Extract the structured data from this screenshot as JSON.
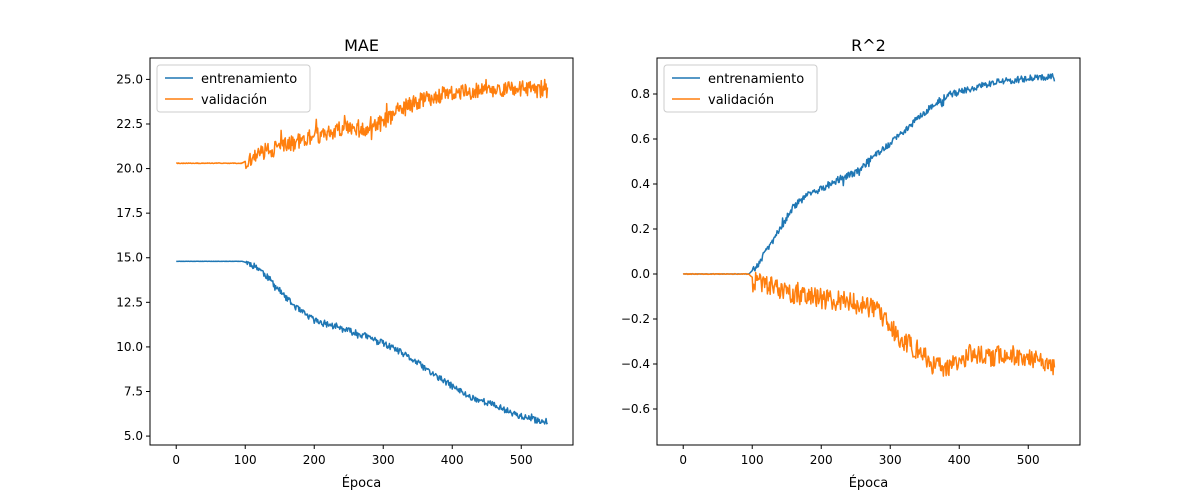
{
  "chart_data": [
    {
      "type": "line",
      "title": "MAE",
      "xlabel": "Época",
      "ylabel": "",
      "xlim": [
        -38,
        575
      ],
      "ylim": [
        4.5,
        26.2
      ],
      "xticks": [
        0,
        100,
        200,
        300,
        400,
        500
      ],
      "yticks": [
        5.0,
        7.5,
        10.0,
        12.5,
        15.0,
        17.5,
        20.0,
        22.5,
        25.0
      ],
      "ytick_labels": [
        "5.0",
        "7.5",
        "10.0",
        "12.5",
        "15.0",
        "17.5",
        "20.0",
        "22.5",
        "25.0"
      ],
      "legend_position": "top-left",
      "noise_seed": 11,
      "series": [
        {
          "name": "entrenamiento",
          "color": "#1f77b4",
          "noise": 0.18,
          "x": [
            0,
            95,
            105,
            120,
            140,
            160,
            180,
            200,
            225,
            250,
            275,
            300,
            325,
            350,
            375,
            400,
            425,
            450,
            475,
            500,
            520,
            538
          ],
          "y": [
            14.8,
            14.8,
            14.7,
            14.4,
            13.6,
            12.7,
            12.0,
            11.5,
            11.2,
            10.9,
            10.6,
            10.2,
            9.7,
            9.1,
            8.4,
            7.8,
            7.2,
            6.9,
            6.5,
            6.1,
            5.9,
            5.8
          ]
        },
        {
          "name": "validación",
          "color": "#ff7f0e",
          "noise": 0.45,
          "x": [
            0,
            95,
            110,
            130,
            160,
            200,
            230,
            250,
            280,
            300,
            320,
            340,
            360,
            380,
            400,
            420,
            440,
            460,
            480,
            500,
            520,
            538
          ],
          "y": [
            20.3,
            20.3,
            20.6,
            21.0,
            21.3,
            21.8,
            22.1,
            22.4,
            22.2,
            22.6,
            23.2,
            23.6,
            23.9,
            24.1,
            24.2,
            24.3,
            24.4,
            24.4,
            24.5,
            24.5,
            24.4,
            24.4
          ]
        }
      ]
    },
    {
      "type": "line",
      "title": "R^2",
      "xlabel": "Época",
      "ylabel": "",
      "xlim": [
        -38,
        575
      ],
      "ylim": [
        -0.76,
        0.96
      ],
      "xticks": [
        0,
        100,
        200,
        300,
        400,
        500
      ],
      "yticks": [
        -0.6,
        -0.4,
        -0.2,
        0.0,
        0.2,
        0.4,
        0.6,
        0.8
      ],
      "ytick_labels": [
        "−0.6",
        "−0.4",
        "−0.2",
        "0.0",
        "0.2",
        "0.4",
        "0.6",
        "0.8"
      ],
      "legend_position": "top-left",
      "noise_seed": 29,
      "series": [
        {
          "name": "entrenamiento",
          "color": "#1f77b4",
          "noise": 0.015,
          "x": [
            0,
            95,
            105,
            120,
            140,
            160,
            180,
            200,
            225,
            250,
            275,
            300,
            325,
            350,
            375,
            400,
            425,
            450,
            475,
            500,
            520,
            538
          ],
          "y": [
            0.0,
            0.0,
            0.03,
            0.1,
            0.2,
            0.3,
            0.35,
            0.38,
            0.42,
            0.45,
            0.52,
            0.58,
            0.65,
            0.72,
            0.78,
            0.81,
            0.83,
            0.85,
            0.86,
            0.87,
            0.875,
            0.88
          ]
        },
        {
          "name": "validación",
          "color": "#ff7f0e",
          "noise": 0.045,
          "x": [
            0,
            95,
            105,
            120,
            150,
            180,
            200,
            230,
            260,
            280,
            300,
            320,
            340,
            360,
            380,
            400,
            420,
            440,
            460,
            480,
            500,
            520,
            538
          ],
          "y": [
            0.0,
            0.0,
            -0.03,
            -0.05,
            -0.08,
            -0.1,
            -0.11,
            -0.12,
            -0.14,
            -0.16,
            -0.24,
            -0.3,
            -0.34,
            -0.4,
            -0.43,
            -0.38,
            -0.35,
            -0.37,
            -0.36,
            -0.36,
            -0.37,
            -0.4,
            -0.42
          ]
        }
      ]
    }
  ]
}
